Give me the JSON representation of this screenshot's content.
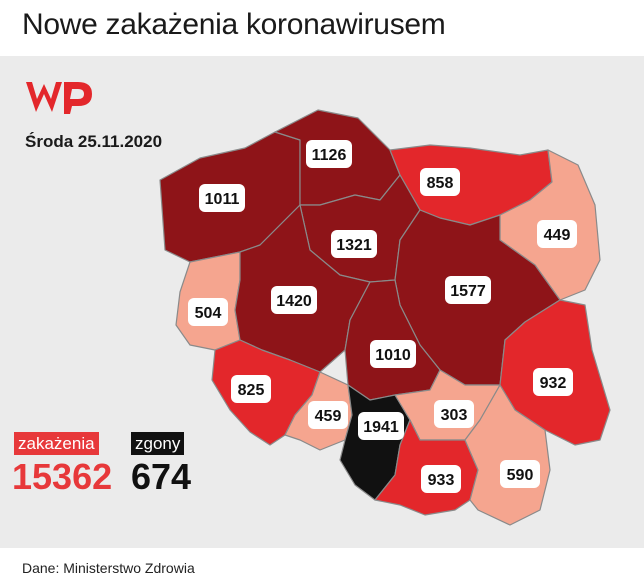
{
  "header": {
    "title": "Nowe zakażenia koronawirusem"
  },
  "brand": {
    "logo_icon": "wp-logo-icon",
    "color": "#e3272b"
  },
  "date": "Środa 25.11.2020",
  "legend": {
    "infections_label": "zakażenia",
    "infections_value": "15362",
    "infections_color": "#e7383a",
    "deaths_label": "zgony",
    "deaths_value": "674",
    "deaths_color": "#111111"
  },
  "map": {
    "colors": {
      "dark": "#8e1418",
      "red": "#e3272b",
      "light": "#f5a58f",
      "black": "#111111"
    },
    "regions": [
      {
        "id": "pomorskie",
        "value": "1126",
        "shade": "dark"
      },
      {
        "id": "zachodniopomorskie",
        "value": "1011",
        "shade": "dark"
      },
      {
        "id": "warminsko-mazurskie",
        "value": "858",
        "shade": "red"
      },
      {
        "id": "podlaskie",
        "value": "449",
        "shade": "light"
      },
      {
        "id": "kujawsko-pomorskie",
        "value": "1321",
        "shade": "dark"
      },
      {
        "id": "lubuskie",
        "value": "504",
        "shade": "light"
      },
      {
        "id": "wielkopolskie",
        "value": "1420",
        "shade": "dark"
      },
      {
        "id": "mazowieckie",
        "value": "1577",
        "shade": "dark"
      },
      {
        "id": "lodzkie",
        "value": "1010",
        "shade": "dark"
      },
      {
        "id": "lubelskie",
        "value": "932",
        "shade": "red"
      },
      {
        "id": "dolnoslaskie",
        "value": "825",
        "shade": "red"
      },
      {
        "id": "opolskie",
        "value": "459",
        "shade": "light"
      },
      {
        "id": "slaskie",
        "value": "1941",
        "shade": "black"
      },
      {
        "id": "swietokrzyskie",
        "value": "303",
        "shade": "light"
      },
      {
        "id": "malopolskie",
        "value": "933",
        "shade": "red"
      },
      {
        "id": "podkarpackie",
        "value": "590",
        "shade": "light"
      }
    ]
  },
  "footer": {
    "source": "Dane: Ministerstwo Zdrowia"
  }
}
